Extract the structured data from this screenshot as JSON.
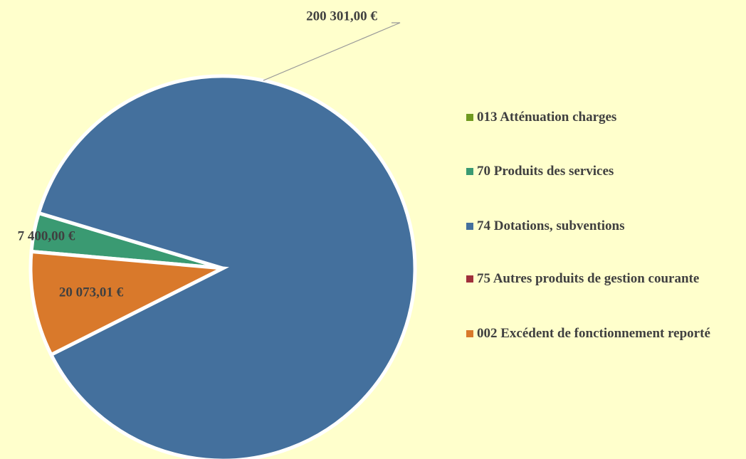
{
  "chart_data": {
    "type": "pie",
    "categories": [
      "013 Atténuation charges",
      "70 Produits des services",
      "74 Dotations, subventions",
      "75 Autres produits de gestion courante",
      "002 Excédent de fonctionnement reporté"
    ],
    "values": [
      0,
      7400,
      200301,
      0,
      20073.01
    ],
    "value_labels": [
      null,
      "7 400,00 €",
      "200 301,00 €",
      null,
      "20 073,01 €"
    ],
    "colors": [
      "#6f9a1f",
      "#3a9a72",
      "#44709d",
      "#a0303a",
      "#d9792b"
    ],
    "start_angle": 275,
    "legend": "right"
  }
}
